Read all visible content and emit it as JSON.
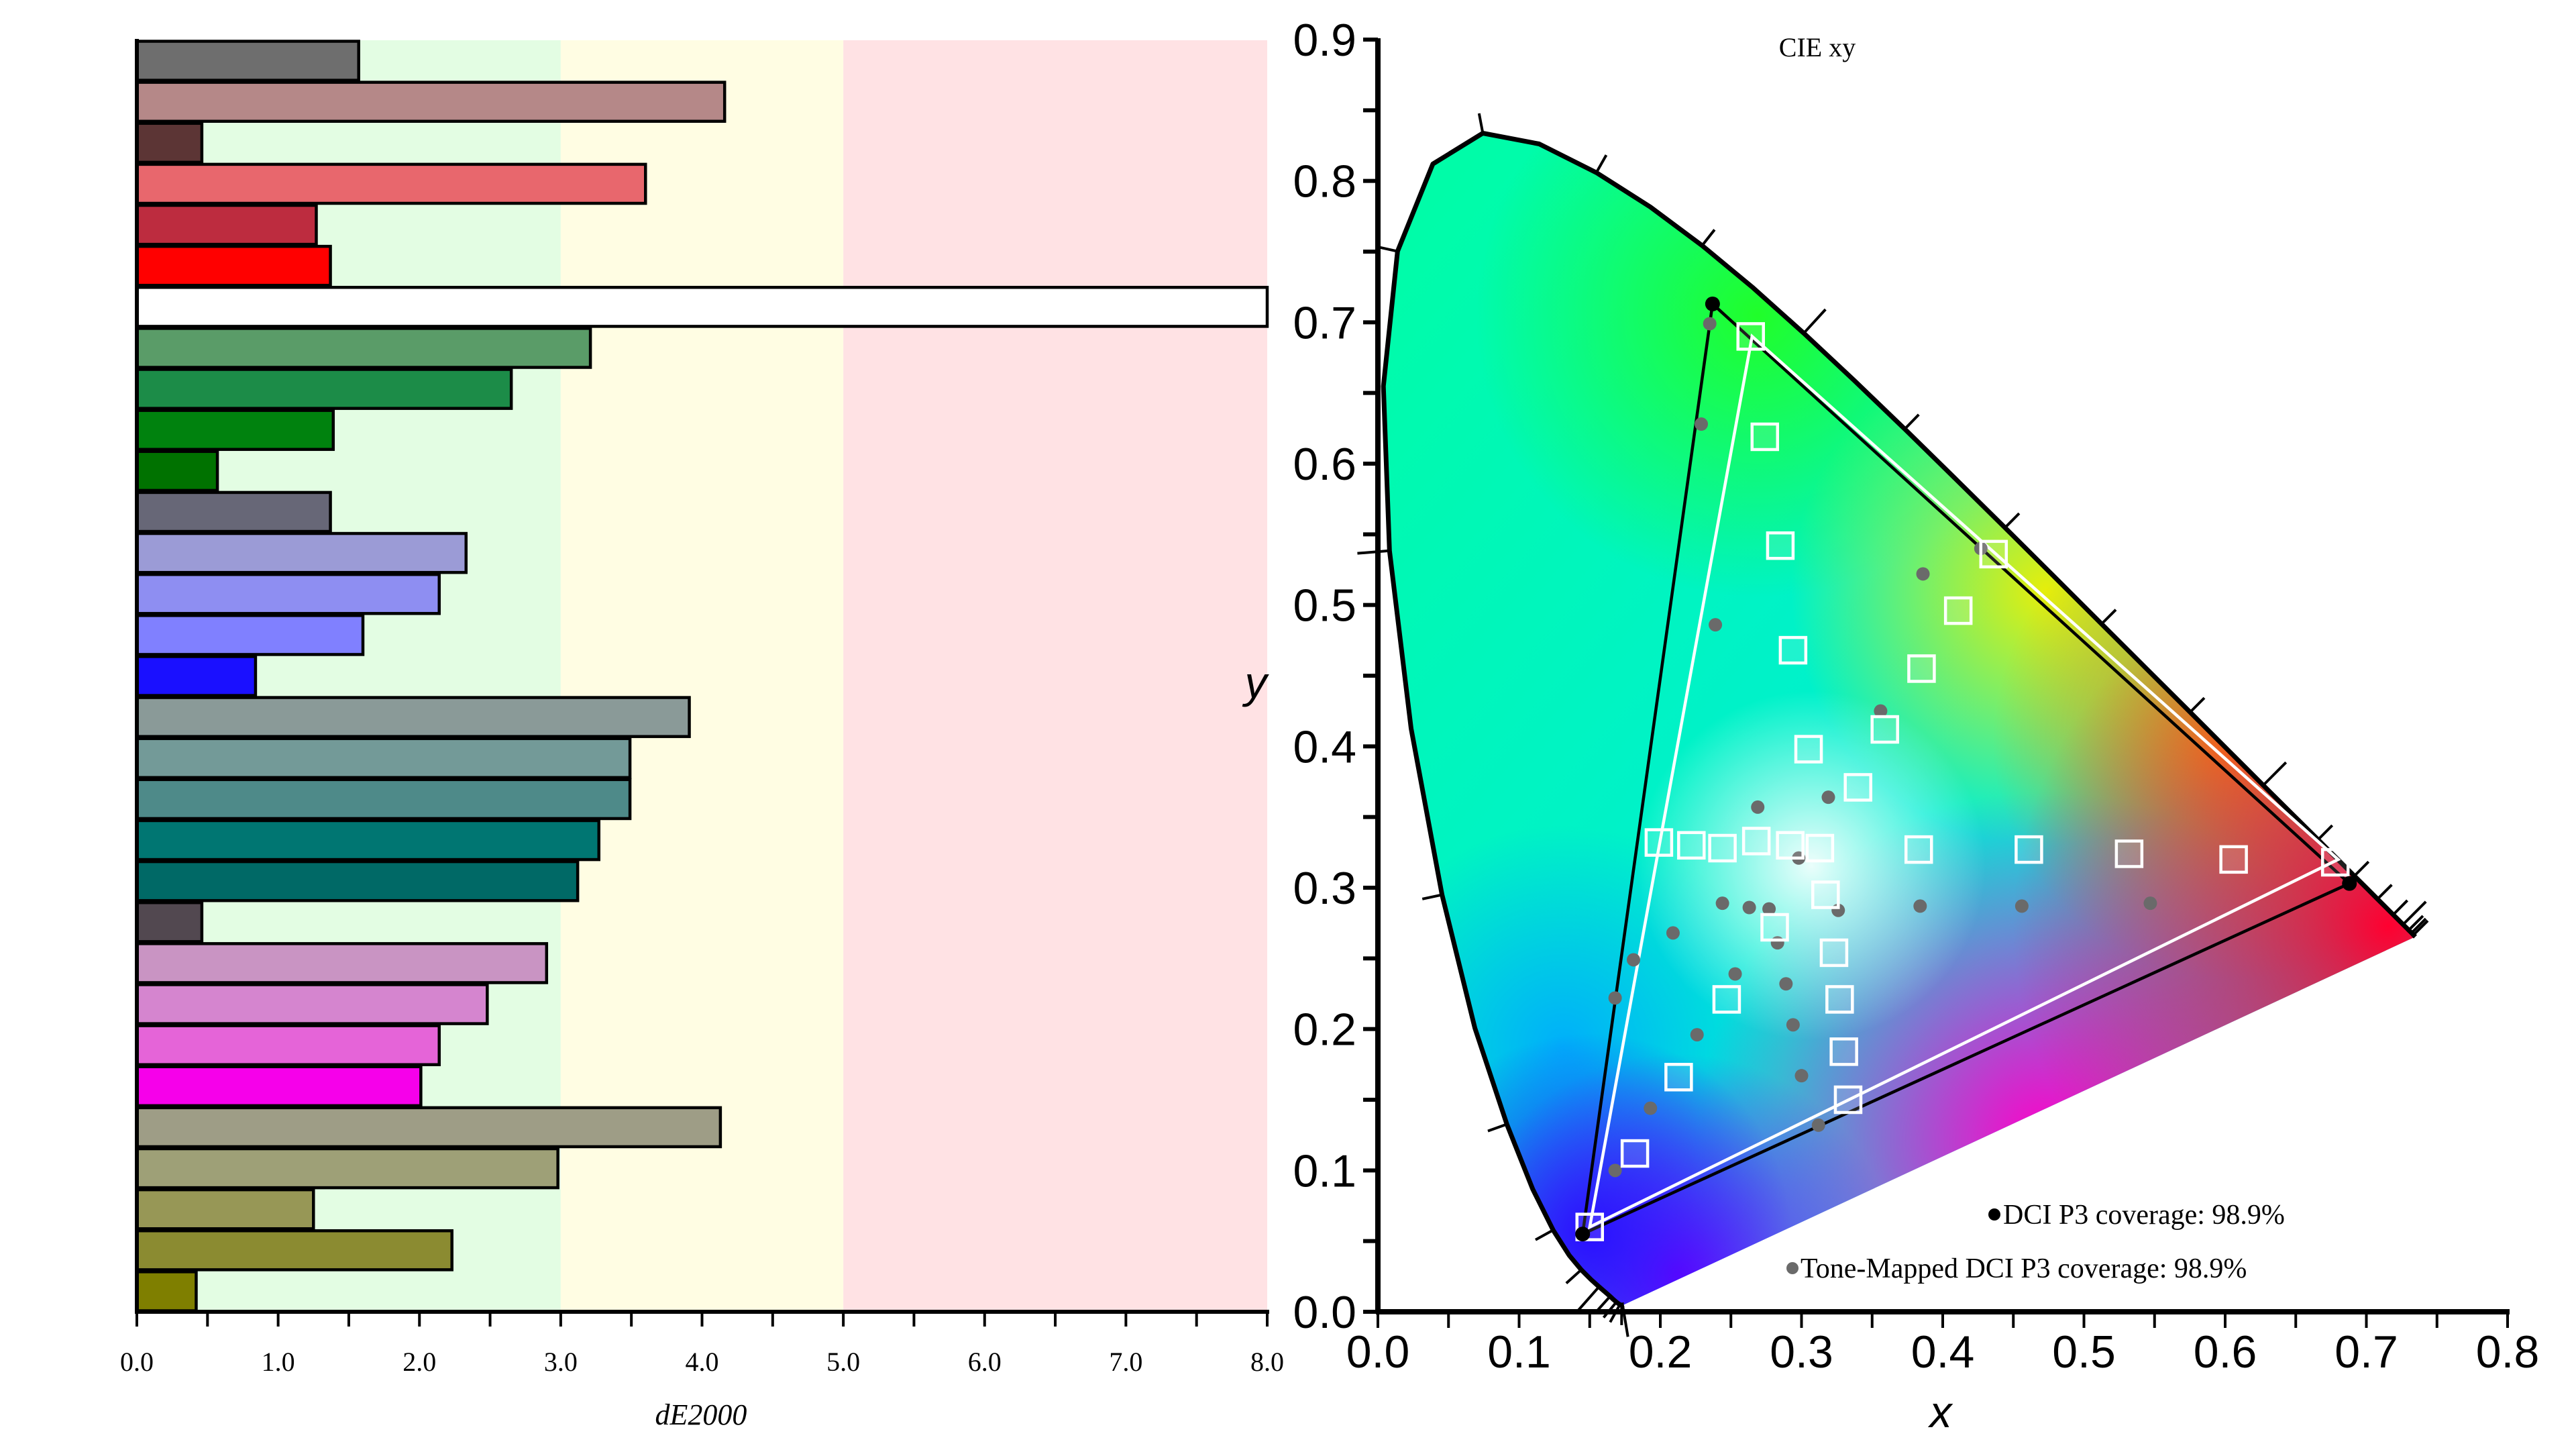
{
  "chart_data": [
    {
      "type": "bar",
      "orientation": "horizontal",
      "title": "",
      "xlabel": "dE2000",
      "ylabel": "",
      "xlim": [
        0,
        8
      ],
      "x_ticks": [
        "0.0",
        "1.0",
        "2.0",
        "3.0",
        "4.0",
        "5.0",
        "6.0",
        "7.0",
        "8.0"
      ],
      "grid": false,
      "background_bands": [
        {
          "from": 0,
          "to": 3,
          "color": "#e3fde3"
        },
        {
          "from": 3,
          "to": 5,
          "color": "#fffde3"
        },
        {
          "from": 5,
          "to": 8,
          "color": "#ffe2e4"
        }
      ],
      "bars": [
        {
          "color": "#6e6e6e",
          "value": 1.57
        },
        {
          "color": "#b58888",
          "value": 4.16
        },
        {
          "color": "#5c3535",
          "value": 0.46
        },
        {
          "color": "#e8676d",
          "value": 3.6
        },
        {
          "color": "#bd2c3f",
          "value": 1.27
        },
        {
          "color": "#ff0000",
          "value": 1.37
        },
        {
          "color": "#ffffff",
          "value": 8.0
        },
        {
          "color": "#5a9c68",
          "value": 3.21
        },
        {
          "color": "#1c8c48",
          "value": 2.65
        },
        {
          "color": "#00820e",
          "value": 1.39
        },
        {
          "color": "#007200",
          "value": 0.57
        },
        {
          "color": "#676777",
          "value": 1.37
        },
        {
          "color": "#9b9bd6",
          "value": 2.33
        },
        {
          "color": "#8e8ef2",
          "value": 2.14
        },
        {
          "color": "#8080ff",
          "value": 1.6
        },
        {
          "color": "#1a10ff",
          "value": 0.84
        },
        {
          "color": "#8a9a98",
          "value": 3.91
        },
        {
          "color": "#739a98",
          "value": 3.49
        },
        {
          "color": "#4e8a89",
          "value": 3.49
        },
        {
          "color": "#007672",
          "value": 3.27
        },
        {
          "color": "#006966",
          "value": 3.12
        },
        {
          "color": "#524850",
          "value": 0.46
        },
        {
          "color": "#c994c3",
          "value": 2.9
        },
        {
          "color": "#d585cf",
          "value": 2.48
        },
        {
          "color": "#e564d8",
          "value": 2.14
        },
        {
          "color": "#f600ea",
          "value": 2.01
        },
        {
          "color": "#9e9d86",
          "value": 4.13
        },
        {
          "color": "#9ea077",
          "value": 2.98
        },
        {
          "color": "#979756",
          "value": 1.25
        },
        {
          "color": "#8b8b31",
          "value": 2.23
        },
        {
          "color": "#7f7f00",
          "value": 0.42
        }
      ]
    },
    {
      "type": "scatter",
      "title": "CIE xy",
      "xlabel": "x",
      "ylabel": "y",
      "xlim": [
        0.0,
        0.8
      ],
      "ylim": [
        0.0,
        0.9
      ],
      "x_ticks": [
        "0.0",
        "0.1",
        "0.2",
        "0.3",
        "0.4",
        "0.5",
        "0.6",
        "0.7",
        "0.8"
      ],
      "y_ticks": [
        "0.0",
        "0.1",
        "0.2",
        "0.3",
        "0.4",
        "0.5",
        "0.6",
        "0.7",
        "0.8",
        "0.9"
      ],
      "legend_placement": "bottom-right",
      "legend": [
        {
          "label": "DCI P3 coverage: 98.9%",
          "color": "#000000"
        },
        {
          "label": "Tone-Mapped DCI P3 coverage: 98.9%",
          "color": "#6a6a6a"
        }
      ],
      "gamut_triangles": [
        {
          "name": "DCI P3",
          "color": "#000000",
          "points": [
            [
              0.688,
              0.303
            ],
            [
              0.237,
              0.713
            ],
            [
              0.145,
              0.055
            ]
          ]
        },
        {
          "name": "Tone-Mapped DCI P3",
          "color": "#ffffff",
          "points": [
            [
              0.68,
              0.32
            ],
            [
              0.265,
              0.69
            ],
            [
              0.15,
              0.06
            ]
          ]
        }
      ],
      "target_points": [
        [
          0.15,
          0.06
        ],
        [
          0.182,
          0.112
        ],
        [
          0.213,
          0.166
        ],
        [
          0.247,
          0.221
        ],
        [
          0.281,
          0.272
        ],
        [
          0.199,
          0.332
        ],
        [
          0.222,
          0.33
        ],
        [
          0.244,
          0.328
        ],
        [
          0.268,
          0.333
        ],
        [
          0.292,
          0.33
        ],
        [
          0.313,
          0.328
        ],
        [
          0.34,
          0.371
        ],
        [
          0.305,
          0.398
        ],
        [
          0.359,
          0.412
        ],
        [
          0.294,
          0.468
        ],
        [
          0.385,
          0.455
        ],
        [
          0.411,
          0.496
        ],
        [
          0.285,
          0.542
        ],
        [
          0.436,
          0.536
        ],
        [
          0.274,
          0.619
        ],
        [
          0.264,
          0.69
        ],
        [
          0.317,
          0.295
        ],
        [
          0.323,
          0.254
        ],
        [
          0.327,
          0.221
        ],
        [
          0.33,
          0.184
        ],
        [
          0.333,
          0.15
        ],
        [
          0.383,
          0.327
        ],
        [
          0.461,
          0.327
        ],
        [
          0.532,
          0.324
        ],
        [
          0.606,
          0.32
        ],
        [
          0.678,
          0.318
        ]
      ],
      "measured_points": [
        [
          0.168,
          0.1
        ],
        [
          0.193,
          0.144
        ],
        [
          0.168,
          0.222
        ],
        [
          0.181,
          0.249
        ],
        [
          0.209,
          0.268
        ],
        [
          0.226,
          0.196
        ],
        [
          0.253,
          0.239
        ],
        [
          0.244,
          0.289
        ],
        [
          0.263,
          0.286
        ],
        [
          0.277,
          0.285
        ],
        [
          0.283,
          0.261
        ],
        [
          0.289,
          0.232
        ],
        [
          0.294,
          0.203
        ],
        [
          0.3,
          0.167
        ],
        [
          0.312,
          0.132
        ],
        [
          0.269,
          0.357
        ],
        [
          0.298,
          0.321
        ],
        [
          0.319,
          0.364
        ],
        [
          0.326,
          0.284
        ],
        [
          0.384,
          0.287
        ],
        [
          0.456,
          0.287
        ],
        [
          0.547,
          0.289
        ],
        [
          0.356,
          0.425
        ],
        [
          0.386,
          0.522
        ],
        [
          0.427,
          0.54
        ],
        [
          0.239,
          0.486
        ],
        [
          0.229,
          0.628
        ],
        [
          0.235,
          0.699
        ]
      ]
    }
  ]
}
